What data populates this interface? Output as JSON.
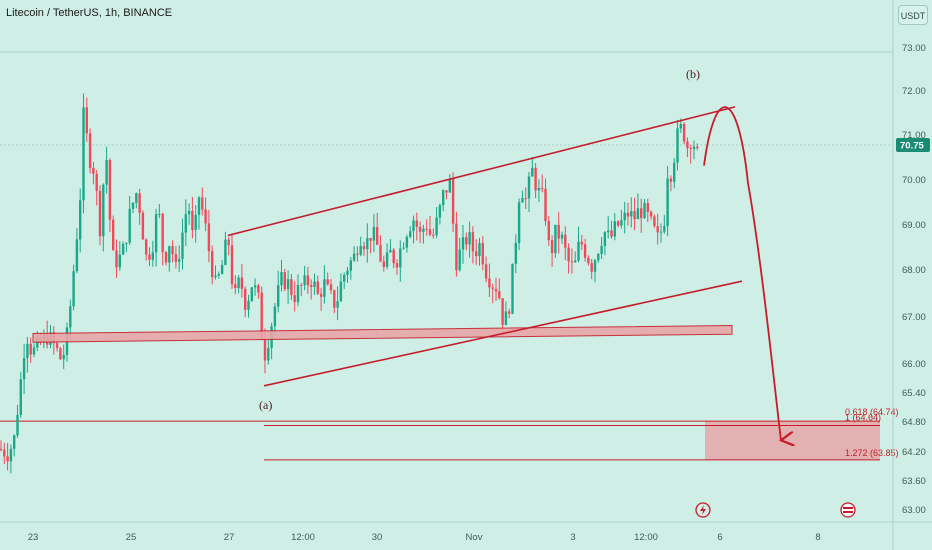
{
  "header": {
    "title": "Litecoin / TetherUS, 1h, BINANCE",
    "currency_label": "USDT"
  },
  "colors": {
    "background": "#cfeee6",
    "up": "#1aa889",
    "down": "#ee4a5a",
    "annotation": "#c51d2b",
    "zone": "#e8a6a8",
    "price_tag": "#1b8b73"
  },
  "icons": [
    "lightning-icon",
    "calendar-event-icon"
  ],
  "chart_data": {
    "type": "candlestick",
    "title": "Litecoin / TetherUS, 1h, BINANCE",
    "ylim": [
      62.7,
      73.3
    ],
    "y_ticks": [
      "73.00",
      "72.00",
      "71.00",
      "70.00",
      "69.00",
      "68.00",
      "67.00",
      "66.00",
      "65.40",
      "64.80",
      "64.20",
      "63.60",
      "63.00"
    ],
    "x_ticks": [
      "23",
      "25",
      "27",
      "12:00",
      "30",
      "Nov",
      "3",
      "12:00",
      "6",
      "8"
    ],
    "last_price": "70.75",
    "wave_labels": [
      "(a)",
      "(b)"
    ],
    "fib_labels": [
      "0.618 (64.74)",
      "1 (64.64)",
      "1.272 (63.85)"
    ],
    "close_path": [
      [
        0,
        64.1
      ],
      [
        8,
        64.0
      ],
      [
        14,
        64.3
      ],
      [
        20,
        65.5
      ],
      [
        26,
        66.8
      ],
      [
        32,
        66.3
      ],
      [
        40,
        66.5
      ],
      [
        48,
        66.7
      ],
      [
        56,
        66.4
      ],
      [
        62,
        66.1
      ],
      [
        68,
        66.8
      ],
      [
        74,
        68.3
      ],
      [
        80,
        69.8
      ],
      [
        84,
        72.0
      ],
      [
        88,
        70.9
      ],
      [
        94,
        70.5
      ],
      [
        100,
        69.2
      ],
      [
        106,
        71.0
      ],
      [
        112,
        68.5
      ],
      [
        118,
        68.4
      ],
      [
        124,
        68.7
      ],
      [
        130,
        69.5
      ],
      [
        136,
        70.0
      ],
      [
        140,
        69.6
      ],
      [
        146,
        68.5
      ],
      [
        152,
        68.7
      ],
      [
        158,
        69.7
      ],
      [
        164,
        68.4
      ],
      [
        170,
        68.9
      ],
      [
        176,
        68.2
      ],
      [
        182,
        69.0
      ],
      [
        188,
        69.8
      ],
      [
        194,
        68.7
      ],
      [
        198,
        70.0
      ],
      [
        204,
        69.4
      ],
      [
        210,
        68.5
      ],
      [
        216,
        67.8
      ],
      [
        222,
        68.3
      ],
      [
        228,
        69.0
      ],
      [
        234,
        67.5
      ],
      [
        240,
        68.0
      ],
      [
        246,
        67.4
      ],
      [
        252,
        67.9
      ],
      [
        258,
        67.6
      ],
      [
        264,
        66.2
      ],
      [
        270,
        66.8
      ],
      [
        276,
        67.5
      ],
      [
        282,
        68.0
      ],
      [
        288,
        67.9
      ],
      [
        294,
        67.6
      ],
      [
        300,
        67.8
      ],
      [
        306,
        67.9
      ],
      [
        312,
        68.0
      ],
      [
        318,
        67.6
      ],
      [
        324,
        67.9
      ],
      [
        330,
        67.6
      ],
      [
        336,
        67.4
      ],
      [
        342,
        68.0
      ],
      [
        348,
        68.3
      ],
      [
        354,
        68.5
      ],
      [
        360,
        69.0
      ],
      [
        366,
        68.8
      ],
      [
        372,
        69.1
      ],
      [
        378,
        68.7
      ],
      [
        384,
        68.2
      ],
      [
        390,
        68.6
      ],
      [
        396,
        68.4
      ],
      [
        402,
        68.8
      ],
      [
        408,
        69.2
      ],
      [
        414,
        69.4
      ],
      [
        420,
        69.0
      ],
      [
        426,
        69.3
      ],
      [
        432,
        68.9
      ],
      [
        438,
        69.4
      ],
      [
        444,
        70.0
      ],
      [
        450,
        70.2
      ],
      [
        456,
        68.4
      ],
      [
        462,
        68.7
      ],
      [
        468,
        69.0
      ],
      [
        474,
        68.6
      ],
      [
        480,
        68.8
      ],
      [
        486,
        68.2
      ],
      [
        492,
        67.9
      ],
      [
        498,
        67.8
      ],
      [
        504,
        66.9
      ],
      [
        510,
        67.5
      ],
      [
        516,
        69.0
      ],
      [
        520,
        70.2
      ],
      [
        526,
        69.8
      ],
      [
        532,
        70.5
      ],
      [
        538,
        70.0
      ],
      [
        544,
        69.8
      ],
      [
        550,
        68.5
      ],
      [
        556,
        69.1
      ],
      [
        562,
        68.9
      ],
      [
        568,
        68.4
      ],
      [
        574,
        68.2
      ],
      [
        580,
        68.9
      ],
      [
        586,
        68.6
      ],
      [
        592,
        68.3
      ],
      [
        598,
        68.7
      ],
      [
        604,
        69.1
      ],
      [
        610,
        68.9
      ],
      [
        616,
        69.2
      ],
      [
        622,
        69.3
      ],
      [
        628,
        69.5
      ],
      [
        634,
        69.4
      ],
      [
        640,
        69.6
      ],
      [
        646,
        69.5
      ],
      [
        652,
        69.2
      ],
      [
        658,
        68.9
      ],
      [
        664,
        69.3
      ],
      [
        668,
        70.6
      ],
      [
        672,
        70.4
      ],
      [
        676,
        71.2
      ],
      [
        682,
        71.5
      ],
      [
        688,
        71.0
      ],
      [
        692,
        71.3
      ],
      [
        696,
        70.9
      ],
      [
        699,
        70.75
      ]
    ],
    "channel_upper": {
      "from": [
        "24 Oct 18:00",
        69.0
      ],
      "to": [
        "5 Nov 18:00",
        71.95
      ]
    },
    "channel_lower": {
      "from": [
        "26 Oct 23:00",
        65.55
      ],
      "to": [
        "6 Nov 18:00",
        67.95
      ]
    },
    "support_zone": [
      66.55,
      66.75
    ],
    "target_zone": [
      63.85,
      64.74
    ]
  }
}
